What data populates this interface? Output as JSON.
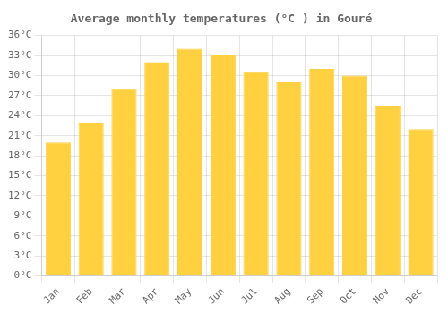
{
  "chart_data": {
    "type": "bar",
    "title": "Average monthly temperatures (°C ) in Gouré",
    "categories": [
      "Jan",
      "Feb",
      "Mar",
      "Apr",
      "May",
      "Jun",
      "Jul",
      "Aug",
      "Sep",
      "Oct",
      "Nov",
      "Dec"
    ],
    "values": [
      20,
      23,
      28,
      32,
      34,
      33,
      30.5,
      29,
      31,
      30,
      25.5,
      22
    ],
    "color": "#FFD040",
    "ylim": [
      0,
      36
    ],
    "yticks": [
      {
        "value": 0,
        "label": "0°C"
      },
      {
        "value": 3,
        "label": "3°C"
      },
      {
        "value": 6,
        "label": "6°C"
      },
      {
        "value": 9,
        "label": "9°C"
      },
      {
        "value": 12,
        "label": "12°C"
      },
      {
        "value": 15,
        "label": "15°C"
      },
      {
        "value": 18,
        "label": "18°C"
      },
      {
        "value": 21,
        "label": "21°C"
      },
      {
        "value": 24,
        "label": "24°C"
      },
      {
        "value": 27,
        "label": "27°C"
      },
      {
        "value": 30,
        "label": "30°C"
      },
      {
        "value": 33,
        "label": "33°C"
      },
      {
        "value": 36,
        "label": "36°C"
      }
    ],
    "grid": true
  }
}
